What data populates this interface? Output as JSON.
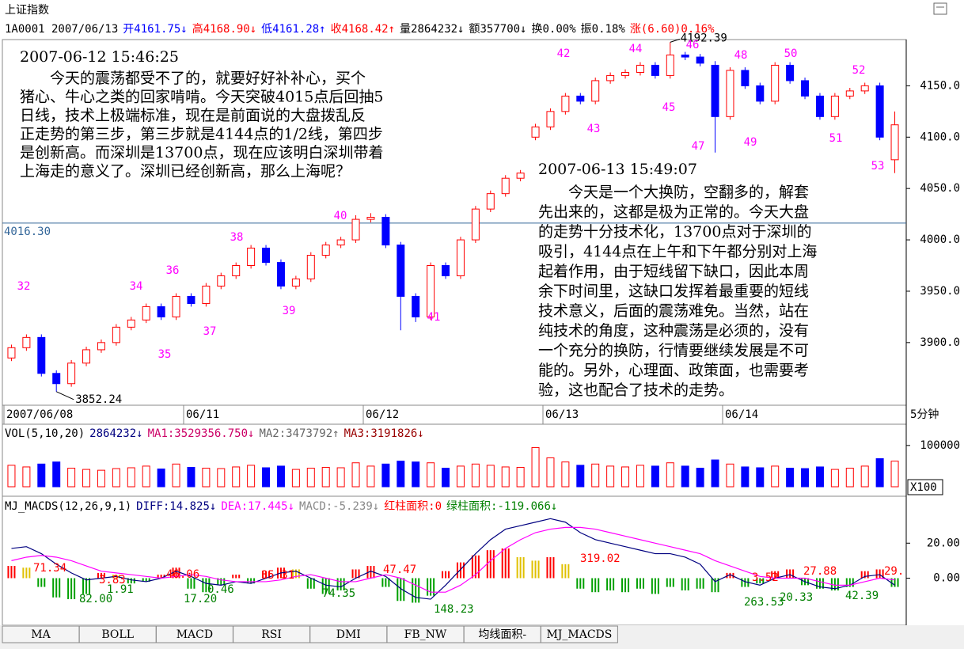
{
  "header": {
    "title": "上证指数",
    "quote": [
      {
        "text": "1A0001 2007/06/13",
        "color": "#000000"
      },
      {
        "text": "开4161.75↓",
        "color": "#0000ff"
      },
      {
        "text": "高4168.90↓",
        "color": "#ff0000"
      },
      {
        "text": "低4161.28↑",
        "color": "#0000ff"
      },
      {
        "text": "收4168.42↑",
        "color": "#ff0000"
      },
      {
        "text": "量2864232↓",
        "color": "#000000"
      },
      {
        "text": "额357700↓",
        "color": "#000000"
      },
      {
        "text": "换0.00%",
        "color": "#000000"
      },
      {
        "text": "振0.18%",
        "color": "#000000"
      },
      {
        "text": "涨(6.60)0.16%",
        "color": "#ff0000"
      }
    ]
  },
  "chart_data": [
    {
      "type": "candlestick",
      "categories": [
        "2007/06/08",
        null,
        null,
        null,
        null,
        null,
        null,
        null,
        null,
        null,
        null,
        null,
        "06/11",
        null,
        null,
        null,
        null,
        null,
        null,
        null,
        null,
        null,
        null,
        null,
        "06/12",
        null,
        null,
        null,
        null,
        null,
        null,
        null,
        null,
        null,
        null,
        null,
        "06/13",
        null,
        null,
        null,
        null,
        null,
        null,
        null,
        null,
        null,
        null,
        null,
        "06/14",
        null,
        null,
        null,
        null,
        null,
        null,
        null,
        null,
        null,
        null,
        null
      ],
      "x_unit_label": "5分钟",
      "open": [
        3885,
        3895,
        3905,
        3870,
        3860,
        3880,
        3893,
        3900,
        3915,
        3922,
        3935,
        3925,
        3945,
        3938,
        3955,
        3965,
        3975,
        3992,
        3978,
        3955,
        3962,
        3985,
        3995,
        4000,
        4020,
        4022,
        3995,
        3945,
        3925,
        3975,
        3965,
        4000,
        4030,
        4045,
        4060,
        4100,
        4110,
        4125,
        4140,
        4135,
        4155,
        4160,
        4163,
        4170,
        4160,
        4180,
        4178,
        4170,
        4120,
        4165,
        4150,
        4135,
        4170,
        4155,
        4140,
        4120,
        4140,
        4145,
        4150,
        4078
      ],
      "high": [
        3898,
        3908,
        3908,
        3873,
        3883,
        3896,
        3903,
        3918,
        3925,
        3938,
        3938,
        3948,
        3948,
        3958,
        3968,
        3978,
        3995,
        3995,
        3981,
        3965,
        3988,
        3998,
        4003,
        4024,
        4026,
        4025,
        3998,
        3948,
        3978,
        3978,
        4003,
        4033,
        4048,
        4063,
        4068,
        4113,
        4128,
        4143,
        4143,
        4158,
        4163,
        4166,
        4173,
        4173,
        4192.39,
        4183,
        4181,
        4174,
        4168,
        4168,
        4153,
        4173,
        4173,
        4158,
        4143,
        4143,
        4148,
        4153,
        4153,
        4125
      ],
      "low": [
        3882,
        3892,
        3867,
        3852.24,
        3857,
        3877,
        3890,
        3897,
        3912,
        3919,
        3922,
        3922,
        3935,
        3935,
        3952,
        3962,
        3972,
        3975,
        3952,
        3952,
        3959,
        3982,
        3992,
        3997,
        4017,
        3992,
        3912,
        3920,
        3922,
        3962,
        3962,
        3997,
        4027,
        4042,
        4057,
        4097,
        4107,
        4122,
        4132,
        4132,
        4152,
        4157,
        4160,
        4157,
        4157,
        4175,
        4169,
        4085,
        4117,
        4147,
        4132,
        4132,
        4152,
        4137,
        4117,
        4117,
        4137,
        4142,
        4097,
        4065
      ],
      "close": [
        3895,
        3905,
        3870,
        3860,
        3880,
        3893,
        3900,
        3915,
        3922,
        3935,
        3925,
        3945,
        3938,
        3955,
        3965,
        3975,
        3992,
        3978,
        3955,
        3962,
        3985,
        3995,
        4000,
        4020,
        4022,
        3995,
        3945,
        3925,
        3975,
        3965,
        4000,
        4030,
        4045,
        4060,
        4065,
        4110,
        4125,
        4140,
        4135,
        4155,
        4160,
        4163,
        4170,
        4160,
        4180,
        4178,
        4172,
        4120,
        4165,
        4150,
        4135,
        4170,
        4155,
        4140,
        4120,
        4140,
        4145,
        4150,
        4100,
        4112
      ],
      "up_color": "#ff0000",
      "down_color": "#0000ff",
      "ylim": [
        3839,
        4195
      ],
      "yticks": [
        {
          "value": 3900,
          "label": "3900.0"
        },
        {
          "value": 3950,
          "label": "3950.0"
        },
        {
          "value": 4000,
          "label": "4000.0"
        },
        {
          "value": 4050,
          "label": "4050.0"
        },
        {
          "value": 4100,
          "label": "4100.0"
        },
        {
          "value": 4150,
          "label": "4150.0"
        }
      ],
      "reference_line": {
        "value": 4016.3,
        "label": "4016.30",
        "color": "#336699"
      },
      "high_label": "4192.39",
      "low_label": "3852.24",
      "wave_labels": [
        "32",
        "34",
        "35",
        "36",
        "37",
        "38",
        "39",
        "40",
        "41",
        "42",
        "43",
        "44",
        "45",
        "46",
        "47",
        "48",
        "49",
        "50",
        "51",
        "52",
        "53"
      ],
      "wave_color": "#ff00ff",
      "notes": [
        {
          "time": "2007-06-12 15:46:25",
          "lines": [
            "　　今天的震荡都受不了的，就要好好补补心，买个",
            "猪心、牛心之类的回家啃啃。今天突破4015点后回抽5",
            "日线，技术上极端标准，现在是前面说的大盘拨乱反",
            "正走势的第三步，第三步就是4144点的1/2线，第四步",
            "是创新高。而深圳是13700点，现在应该明白深圳带着",
            "上海走的意义了。深圳已经创新高，那么上海呢？"
          ]
        },
        {
          "time": "2007-06-13 15:49:07",
          "lines": [
            "　　今天是一个大换防，空翻多的，解套",
            "先出来的，这都是极为正常的。今天大盘",
            "的走势十分技术化，13700点对于深圳的",
            "吸引，4144点在上午和下午都分别对上海",
            "起着作用，由于短线留下缺口，因此本周",
            "余下时间里，这缺口发挥着最重要的短线",
            "技术意义，后面的震荡难免。当然，站在",
            "纯技术的角度，这种震荡是必须的，没有",
            "一个充分的换防，行情要继续发展是不可",
            "能的。另外，心理面、政策面，也需要考",
            "验，这也配合了技术的走势。"
          ]
        }
      ]
    },
    {
      "type": "volume",
      "legend": [
        {
          "text": "VOL(5,10,20)",
          "color": "#000000"
        },
        {
          "text": "2864232↓",
          "color": "#000080"
        },
        {
          "text": "MA1:3529356.750↓",
          "color": "#cc0066"
        },
        {
          "text": "MA2:3473792↑",
          "color": "#666666"
        },
        {
          "text": "MA3:3191826↓",
          "color": "#990000"
        }
      ],
      "values": [
        52000,
        48000,
        55000,
        60000,
        45000,
        42000,
        40000,
        44000,
        46000,
        50000,
        43000,
        55000,
        47000,
        45000,
        44000,
        48000,
        52000,
        46000,
        50000,
        42000,
        45000,
        47000,
        46000,
        58000,
        50000,
        55000,
        62000,
        60000,
        58000,
        45000,
        50000,
        55000,
        52000,
        48000,
        47000,
        95000,
        70000,
        60000,
        52000,
        55000,
        50000,
        48000,
        52000,
        50000,
        58000,
        50000,
        45000,
        65000,
        55000,
        48000,
        46000,
        50000,
        45000,
        44000,
        48000,
        42000,
        45000,
        50000,
        68000,
        62000
      ],
      "ylim": [
        0,
        115000
      ],
      "yticks": [
        100000
      ],
      "unit_label": "X100"
    },
    {
      "type": "macd",
      "legend": [
        {
          "text": "MJ_MACDS(12,26,9,1)",
          "color": "#000000"
        },
        {
          "text": "DIFF:14.825↓",
          "color": "#000080"
        },
        {
          "text": "DEA:17.445↓",
          "color": "#ff00ff"
        },
        {
          "text": "MACD:-5.239↓",
          "color": "#888888"
        },
        {
          "text": "红柱面积:0",
          "color": "#ff0000"
        },
        {
          "text": "绿柱面积:-119.066↓",
          "color": "#008000"
        }
      ],
      "series": [
        {
          "name": "MACD",
          "color": "#ff0000",
          "values": [
            7,
            6,
            -5,
            -11,
            -12,
            -9,
            3,
            2,
            -3,
            -2,
            2,
            6,
            -6,
            -8,
            -4,
            2,
            -3,
            4,
            6,
            5,
            -6,
            -9,
            -7,
            5,
            7,
            -5,
            -13,
            -14,
            -10,
            4,
            9,
            13,
            16,
            17,
            12,
            10,
            12,
            8,
            -6,
            -8,
            -7,
            -8,
            -6,
            -9,
            -5,
            -7,
            -6,
            -8,
            3,
            -5,
            -3,
            4,
            5,
            -4,
            -6,
            -7,
            -5,
            4,
            5,
            -5
          ]
        },
        {
          "name": "DIFF",
          "color": "#000080",
          "values": [
            17,
            18,
            14,
            8,
            3,
            -1,
            0,
            1,
            -1,
            -2,
            0,
            4,
            1,
            -3,
            -4,
            -2,
            -3,
            0,
            3,
            4,
            0,
            -4,
            -5,
            0,
            4,
            1,
            -6,
            -11,
            -12,
            -4,
            5,
            14,
            22,
            28,
            30,
            32,
            34,
            32,
            26,
            22,
            20,
            18,
            16,
            14,
            14,
            12,
            8,
            -2,
            2,
            -2,
            -4,
            0,
            2,
            -2,
            -5,
            -6,
            -4,
            1,
            2,
            -4
          ]
        },
        {
          "name": "DEA",
          "color": "#ff00ff",
          "values": [
            10,
            12,
            13,
            12,
            10,
            7,
            4,
            3,
            2,
            1,
            0,
            1,
            2,
            1,
            -1,
            -2,
            -2,
            -2,
            -1,
            1,
            2,
            0,
            -2,
            -2,
            0,
            2,
            0,
            -4,
            -8,
            -8,
            -4,
            2,
            10,
            17,
            22,
            26,
            28,
            29,
            29,
            28,
            26,
            24,
            22,
            20,
            18,
            16,
            14,
            10,
            7,
            4,
            1,
            0,
            0,
            0,
            -2,
            -4,
            -4,
            -2,
            0,
            -1
          ]
        }
      ],
      "negative_color": "#00a000",
      "falling_color": "#e0c000",
      "ylim": [
        -26,
        35.5
      ],
      "yticks": [
        {
          "value": 0,
          "label": "0.00"
        },
        {
          "value": 20,
          "label": "20.00"
        }
      ],
      "area_labels": [
        {
          "text": "71.34",
          "color": "#ff0000"
        },
        {
          "text": "82.00",
          "color": "#008000"
        },
        {
          "text": "3.83",
          "color": "#ff0000"
        },
        {
          "text": "1.91",
          "color": "#008000"
        },
        {
          "text": "46.06",
          "color": "#ff0000"
        },
        {
          "text": "17.20",
          "color": "#008000"
        },
        {
          "text": "0.46",
          "color": "#008000"
        },
        {
          "text": "35.31",
          "color": "#ff0000"
        },
        {
          "text": "74.35",
          "color": "#008000"
        },
        {
          "text": "47.47",
          "color": "#ff0000"
        },
        {
          "text": "148.23",
          "color": "#008000"
        },
        {
          "text": "319.02",
          "color": "#ff0000"
        },
        {
          "text": "3.52",
          "color": "#ff0000"
        },
        {
          "text": "263.53",
          "color": "#008000"
        },
        {
          "text": "20.33",
          "color": "#008000"
        },
        {
          "text": "27.88",
          "color": "#ff0000"
        },
        {
          "text": "42.39",
          "color": "#008000"
        },
        {
          "text": "29.",
          "color": "#ff0000"
        }
      ]
    }
  ],
  "tabs": [
    "MA",
    "BOLL",
    "MACD",
    "RSI",
    "DMI",
    "FB_NW",
    "均线面积-",
    "MJ_MACDS"
  ]
}
